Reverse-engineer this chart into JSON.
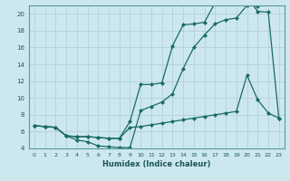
{
  "xlabel": "Humidex (Indice chaleur)",
  "bg_color": "#cce8ee",
  "grid_color": "#b0ccd4",
  "line_color": "#1a6b5e",
  "xlim": [
    -0.5,
    23.5
  ],
  "ylim": [
    4,
    21
  ],
  "yticks": [
    4,
    6,
    8,
    10,
    12,
    14,
    16,
    18,
    20
  ],
  "xticks": [
    0,
    1,
    2,
    3,
    4,
    5,
    6,
    7,
    8,
    9,
    10,
    11,
    12,
    13,
    14,
    15,
    16,
    17,
    18,
    19,
    20,
    21,
    22,
    23
  ],
  "line1_x": [
    0,
    1,
    2,
    3,
    4,
    5,
    6,
    7,
    8,
    9,
    10,
    11,
    12,
    13,
    14,
    15,
    16,
    17,
    18,
    19,
    20,
    21,
    22,
    23
  ],
  "line1_y": [
    6.7,
    6.6,
    6.5,
    5.5,
    5.4,
    5.4,
    5.3,
    5.2,
    5.2,
    7.2,
    11.6,
    11.6,
    11.8,
    16.2,
    18.7,
    18.8,
    19.0,
    21.3,
    21.5,
    21.8,
    22.0,
    20.3,
    20.2,
    7.5
  ],
  "line2_x": [
    0,
    1,
    2,
    3,
    4,
    5,
    6,
    7,
    8,
    9,
    10,
    11,
    12,
    13,
    14,
    15,
    16,
    17,
    18,
    19,
    20,
    21
  ],
  "line2_y": [
    6.7,
    6.6,
    6.5,
    5.5,
    5.0,
    4.8,
    4.3,
    4.2,
    4.1,
    4.1,
    8.5,
    9.0,
    9.5,
    10.5,
    13.5,
    16.0,
    17.5,
    18.8,
    19.3,
    19.5,
    21.0,
    20.9
  ],
  "line3_x": [
    0,
    1,
    2,
    3,
    4,
    5,
    6,
    7,
    8,
    9,
    10,
    11,
    12,
    13,
    14,
    15,
    16,
    17,
    18,
    19,
    20,
    21,
    22,
    23
  ],
  "line3_y": [
    6.7,
    6.6,
    6.5,
    5.5,
    5.4,
    5.4,
    5.3,
    5.2,
    5.2,
    6.5,
    6.6,
    6.8,
    7.0,
    7.2,
    7.4,
    7.6,
    7.8,
    8.0,
    8.2,
    8.4,
    12.7,
    9.8,
    8.2,
    7.6
  ]
}
